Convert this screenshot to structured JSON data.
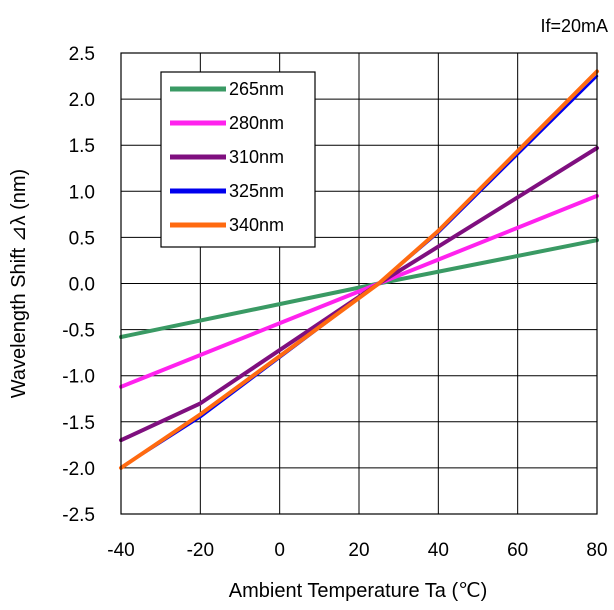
{
  "chart_data": {
    "type": "line",
    "title": "",
    "annotation": "If=20mA",
    "xlabel": "Ambient Temperature Ta (℃)",
    "ylabel": "Wavelength Shift ⊿λ (nm)",
    "xlim": [
      -40,
      80
    ],
    "ylim": [
      -2.5,
      2.5
    ],
    "xticks": [
      "-40",
      "-20",
      "0",
      "20",
      "40",
      "60",
      "80"
    ],
    "yticks": [
      "2.5",
      "2.0",
      "1.5",
      "1.0",
      "0.5",
      "0.0",
      "-0.5",
      "-1.0",
      "-1.5",
      "-2.0",
      "-2.5"
    ],
    "grid": true,
    "legend_position": "top-left",
    "series": [
      {
        "name": "265nm",
        "color": "#3a9a64",
        "x": [
          -40,
          25,
          80
        ],
        "y": [
          -0.58,
          0.0,
          0.47
        ]
      },
      {
        "name": "280nm",
        "color": "#ff22ee",
        "x": [
          -40,
          25,
          80
        ],
        "y": [
          -1.12,
          0.0,
          0.95
        ]
      },
      {
        "name": "310nm",
        "color": "#7f0f7f",
        "x": [
          -40,
          -20,
          25,
          40,
          80
        ],
        "y": [
          -1.7,
          -1.3,
          0.0,
          0.4,
          1.47
        ]
      },
      {
        "name": "325nm",
        "color": "#0000ee",
        "x": [
          -40,
          -20,
          25,
          40,
          80
        ],
        "y": [
          -2.0,
          -1.45,
          0.0,
          0.55,
          2.25
        ]
      },
      {
        "name": "340nm",
        "color": "#ff6a10",
        "x": [
          -40,
          -20,
          25,
          40,
          80
        ],
        "y": [
          -2.0,
          -1.42,
          0.0,
          0.57,
          2.3
        ]
      }
    ]
  }
}
